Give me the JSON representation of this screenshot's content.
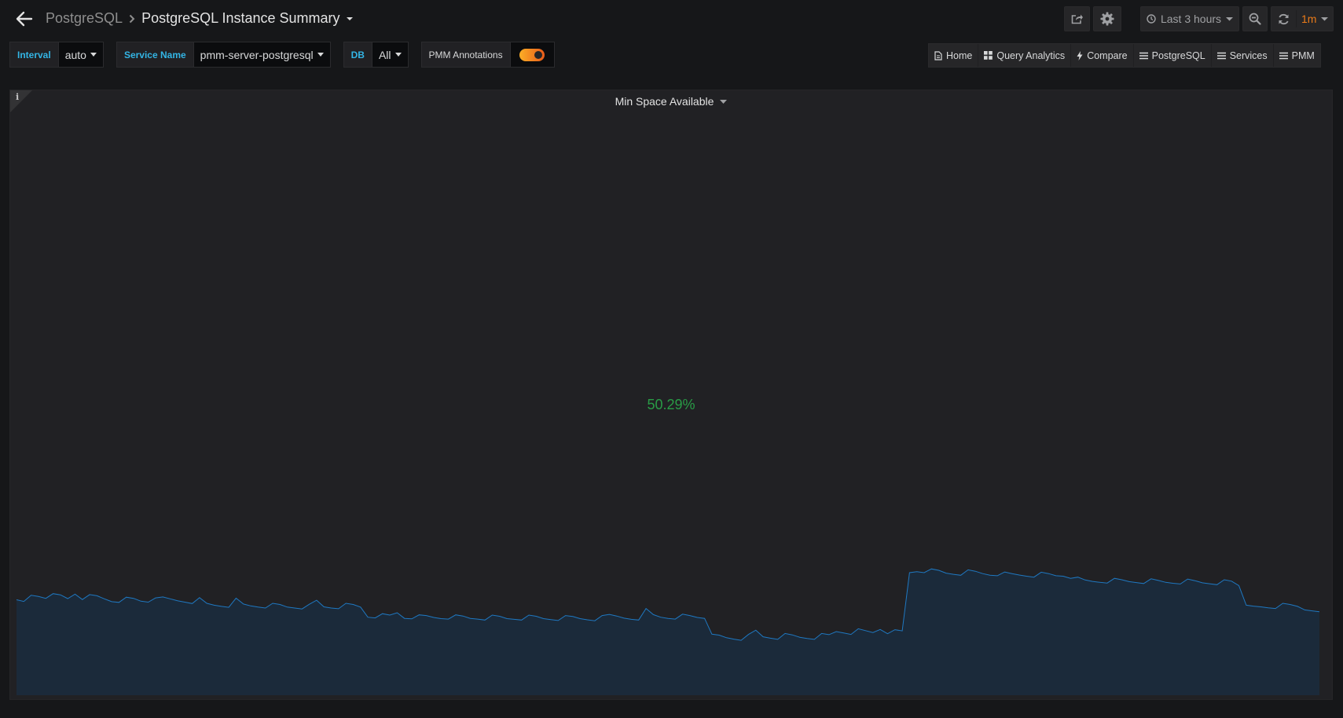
{
  "header": {
    "parent": "PostgreSQL",
    "title": "PostgreSQL Instance Summary",
    "time_range": "Last 3 hours",
    "refresh_interval": "1m",
    "icons": {
      "back": "arrow-left-icon",
      "share": "share-icon",
      "settings": "gear-icon",
      "time": "clock-icon",
      "zoom_out": "zoom-out-icon",
      "refresh": "refresh-icon"
    }
  },
  "variables": {
    "interval": {
      "label": "Interval",
      "value": "auto"
    },
    "service": {
      "label": "Service Name",
      "value": "pmm-server-postgresql"
    },
    "db": {
      "label": "DB",
      "value": "All"
    },
    "annotations": {
      "label": "PMM Annotations",
      "enabled": true
    }
  },
  "links": [
    {
      "label": "Home",
      "icon": "document-icon"
    },
    {
      "label": "Query Analytics",
      "icon": "apps-icon"
    },
    {
      "label": "Compare",
      "icon": "bolt-icon"
    },
    {
      "label": "PostgreSQL",
      "icon": "bars-icon"
    },
    {
      "label": "Services",
      "icon": "bars-icon"
    },
    {
      "label": "PMM",
      "icon": "bars-icon"
    }
  ],
  "panel": {
    "title": "Min Space Available",
    "info": "i",
    "value": "50.29%",
    "colors": {
      "value": "#299c46",
      "sparkline_line": "#1f78c1",
      "sparkline_fill": "#1b2a3a"
    },
    "chart_data": {
      "type": "area",
      "title": "",
      "xlabel": "",
      "ylabel": "",
      "ylim": [
        0,
        100
      ],
      "grid": false,
      "values": [
        40.5,
        39.8,
        42.4,
        41.9,
        41.1,
        43.1,
        42.6,
        41.0,
        42.9,
        40.6,
        42.7,
        42.2,
        40.9,
        39.7,
        39.4,
        41.6,
        41.1,
        39.9,
        39.5,
        41.3,
        41.7,
        40.9,
        40.1,
        39.5,
        38.9,
        41.4,
        39.0,
        38.2,
        37.7,
        37.3,
        41.2,
        38.7,
        37.9,
        37.4,
        37.0,
        39.0,
        38.5,
        37.4,
        37.0,
        36.6,
        38.6,
        40.3,
        37.5,
        37.0,
        36.7,
        39.0,
        38.5,
        37.4,
        33.1,
        32.8,
        34.6,
        34.0,
        35.0,
        32.6,
        32.4,
        34.1,
        33.8,
        33.0,
        32.5,
        32.3,
        34.1,
        33.6,
        32.6,
        32.3,
        31.9,
        34.0,
        33.5,
        32.5,
        32.2,
        31.9,
        34.0,
        33.5,
        32.5,
        32.1,
        31.7,
        33.8,
        33.4,
        32.5,
        32.0,
        31.6,
        33.8,
        34.3,
        33.6,
        32.7,
        32.2,
        31.9,
        36.8,
        34.2,
        33.1,
        32.6,
        32.3,
        34.4,
        33.8,
        33.0,
        32.6,
        25.9,
        25.5,
        24.4,
        23.8,
        23.3,
        25.8,
        27.6,
        24.8,
        24.2,
        23.7,
        26.2,
        25.6,
        24.6,
        24.1,
        23.7,
        26.2,
        25.7,
        27.0,
        26.4,
        25.8,
        28.2,
        27.4,
        26.6,
        27.9,
        26.1,
        27.8,
        27.3,
        52.0,
        52.4,
        52.0,
        53.6,
        53.0,
        51.8,
        51.3,
        50.9,
        53.2,
        52.6,
        51.6,
        50.9,
        50.7,
        52.3,
        51.6,
        51.0,
        50.5,
        50.1,
        52.2,
        51.6,
        50.7,
        50.5,
        49.6,
        50.1,
        48.9,
        48.3,
        47.9,
        47.6,
        49.6,
        49.0,
        48.2,
        47.8,
        47.4,
        49.4,
        48.7,
        47.9,
        47.5,
        47.2,
        49.3,
        48.6,
        47.7,
        47.3,
        46.9,
        49.0,
        48.4,
        46.5,
        38.2,
        37.8,
        37.5,
        37.1,
        36.8,
        39.0,
        38.5,
        37.7,
        36.2,
        35.8,
        35.4
      ]
    }
  }
}
